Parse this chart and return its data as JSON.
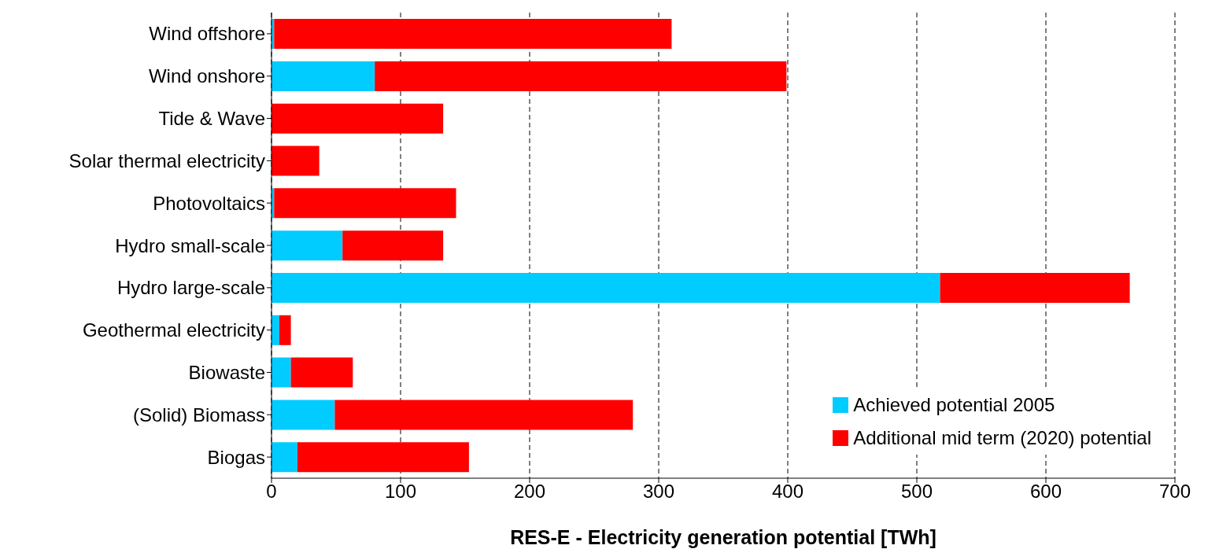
{
  "chart_data": {
    "type": "bar",
    "orientation": "horizontal",
    "stacked": true,
    "xlabel": "RES-E - Electricity generation potential [TWh]",
    "categories": [
      "Wind offshore",
      "Wind onshore",
      "Tide & Wave",
      "Solar thermal electricity",
      "Photovoltaics",
      "Hydro small-scale",
      "Hydro large-scale",
      "Geothermal electricity",
      "Biowaste",
      "(Solid) Biomass",
      "Biogas"
    ],
    "series": [
      {
        "name": "Achieved potential 2005",
        "color": "#00ccff",
        "values": [
          2,
          80,
          0,
          0,
          2,
          55,
          518,
          6,
          15,
          49,
          20
        ]
      },
      {
        "name": "Additional mid term (2020) potential",
        "color": "#ff0000",
        "values": [
          308,
          319,
          133,
          37,
          141,
          78,
          147,
          9,
          48,
          231,
          133
        ]
      }
    ],
    "xlim": [
      0,
      700
    ],
    "xticks": [
      0,
      100,
      200,
      300,
      400,
      500,
      600,
      700
    ],
    "grid": "x",
    "legend": "bottom right"
  }
}
